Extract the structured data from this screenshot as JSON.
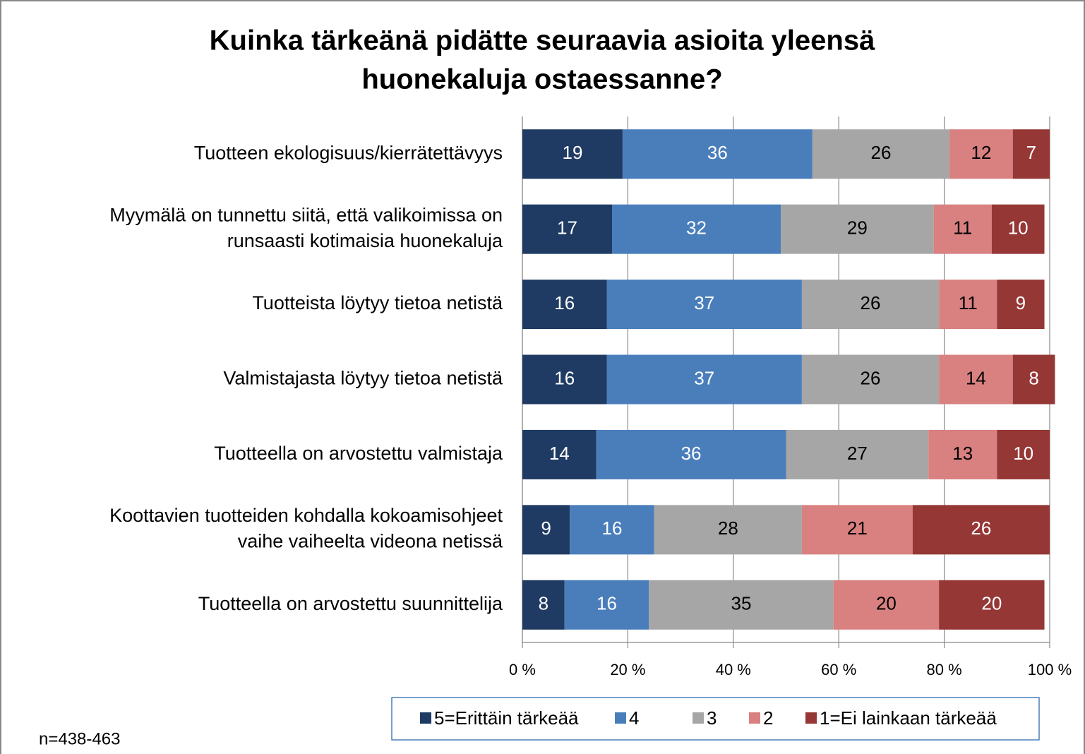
{
  "chart_data": {
    "type": "bar",
    "orientation": "horizontal",
    "stacked": true,
    "title": "Kuinka tärkeänä pidätte seuraavia asioita yleensä\nhuonekaluja ostaessanne?",
    "categories": [
      "Tuotteen ekologisuus/kierrätettävyys",
      "Myymälä on tunnettu siitä, että valikoimissa on\nrunsaasti kotimaisia huonekaluja",
      "Tuotteista löytyy tietoa netistä",
      "Valmistajasta löytyy tietoa netistä",
      "Tuotteella on arvostettu valmistaja",
      "Koottavien tuotteiden kohdalla kokoamisohjeet\nvaihe vaiheelta videona netissä",
      "Tuotteella on arvostettu suunnittelija"
    ],
    "series": [
      {
        "name": "5=Erittäin tärkeää",
        "color": "#1f3b63",
        "label_color": "#ffffff",
        "values": [
          19,
          17,
          16,
          16,
          14,
          9,
          8
        ]
      },
      {
        "name": "4",
        "color": "#4a7ebb",
        "label_color": "#ffffff",
        "values": [
          36,
          32,
          37,
          37,
          36,
          16,
          16
        ]
      },
      {
        "name": "3",
        "color": "#a6a6a6",
        "label_color": "#000000",
        "values": [
          26,
          29,
          26,
          26,
          27,
          28,
          35
        ]
      },
      {
        "name": "2",
        "color": "#d98080",
        "label_color": "#000000",
        "values": [
          12,
          11,
          11,
          14,
          13,
          21,
          20
        ]
      },
      {
        "name": "1=Ei lainkaan tärkeää",
        "color": "#953735",
        "label_color": "#ffffff",
        "values": [
          7,
          10,
          9,
          8,
          10,
          26,
          20
        ]
      }
    ],
    "xlim": [
      0,
      100
    ],
    "xticks": [
      {
        "value": 0,
        "label": "0 %"
      },
      {
        "value": 20,
        "label": "20 %"
      },
      {
        "value": 40,
        "label": "40 %"
      },
      {
        "value": 60,
        "label": "60 %"
      },
      {
        "value": 80,
        "label": "80 %"
      },
      {
        "value": 100,
        "label": "100 %"
      }
    ],
    "grid": true,
    "legend": "bottom",
    "note": "n=438-463"
  }
}
